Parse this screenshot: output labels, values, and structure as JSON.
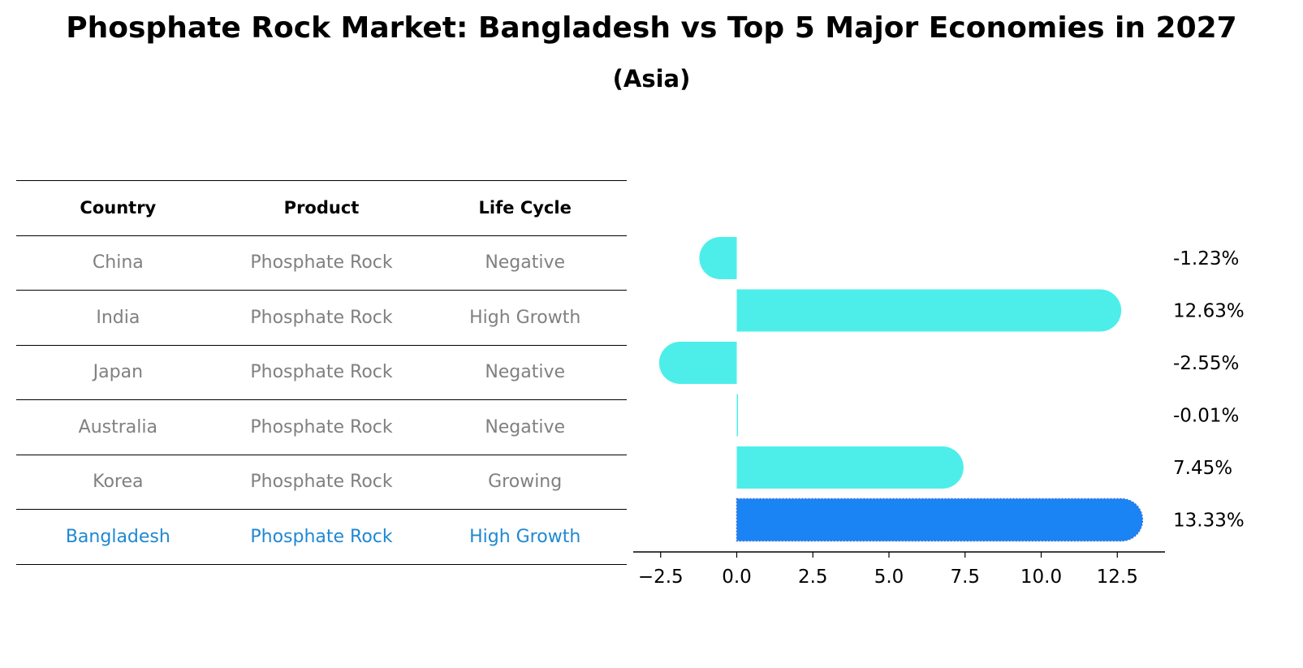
{
  "title": "Phosphate Rock Market: Bangladesh vs Top 5 Major Economies in 2027",
  "subtitle": "(Asia)",
  "table": {
    "headers": [
      "Country",
      "Product",
      "Life Cycle"
    ],
    "rows": [
      [
        "China",
        "Phosphate Rock",
        "Negative"
      ],
      [
        "India",
        "Phosphate Rock",
        "High Growth"
      ],
      [
        "Japan",
        "Phosphate Rock",
        "Negative"
      ],
      [
        "Australia",
        "Phosphate Rock",
        "Negative"
      ],
      [
        "Korea",
        "Phosphate Rock",
        "Growing"
      ],
      [
        "Bangladesh",
        "Phosphate Rock",
        "High Growth"
      ]
    ],
    "highlight_row": 5,
    "text_color": "#808080",
    "highlight_color": "#1f88d2"
  },
  "chart_data": {
    "type": "bar",
    "orientation": "horizontal",
    "categories": [
      "China",
      "India",
      "Japan",
      "Australia",
      "Korea",
      "Bangladesh"
    ],
    "values": [
      -1.23,
      12.63,
      -2.55,
      -0.01,
      7.45,
      13.33
    ],
    "value_labels": [
      "-1.23%",
      "12.63%",
      "-2.55%",
      "-0.01%",
      "7.45%",
      "13.33%"
    ],
    "xlim": [
      -3.4,
      14.2
    ],
    "xticks": [
      -2.5,
      0.0,
      2.5,
      5.0,
      7.5,
      10.0,
      12.5
    ],
    "xtick_labels": [
      "−2.5",
      "0.0",
      "2.5",
      "5.0",
      "7.5",
      "10.0",
      "12.5"
    ],
    "bar_color": "#4deeea",
    "highlight_color": "#1a84f5",
    "highlight_index": 5,
    "xlabel": "",
    "ylabel": ""
  }
}
